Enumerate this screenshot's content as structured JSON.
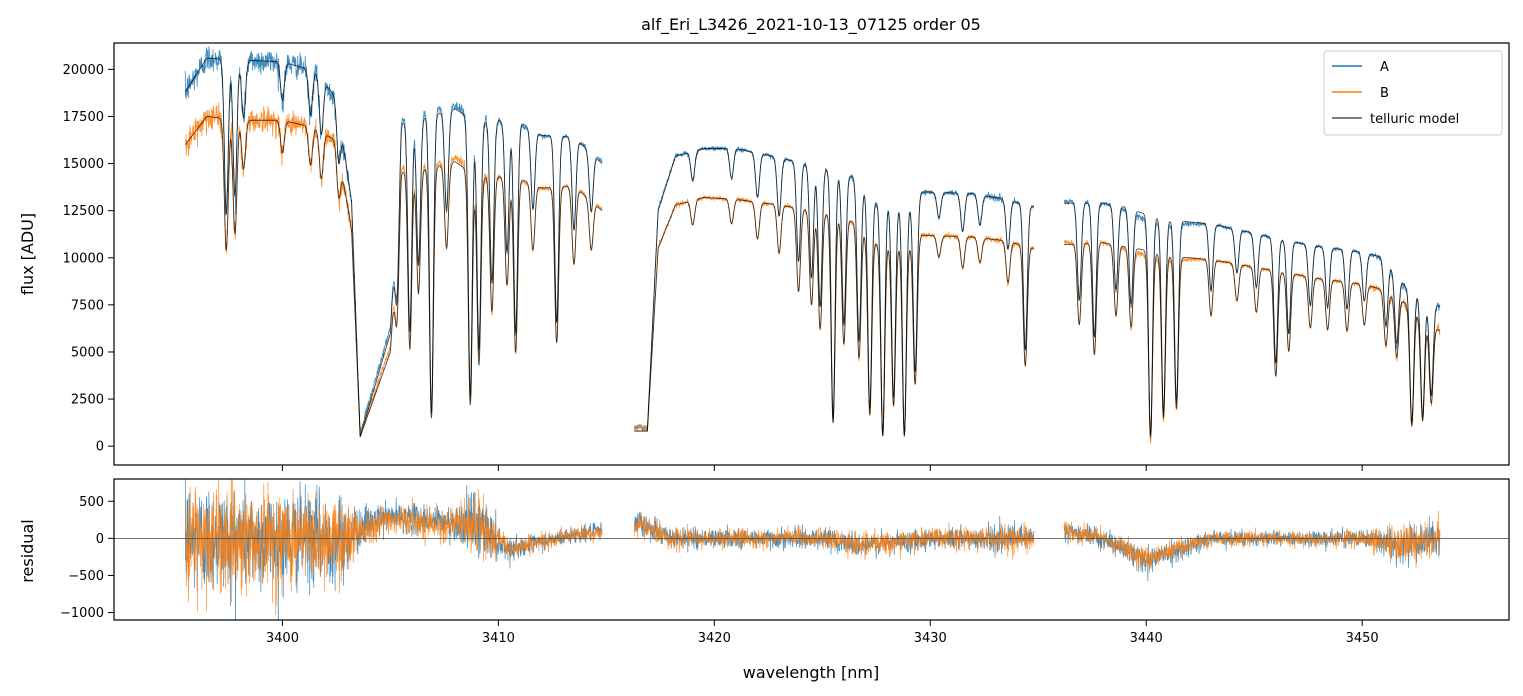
{
  "chart_data": [
    {
      "type": "line",
      "title": "alf_Eri_L3426_2021-10-13_07125  order 05",
      "xlabel": "",
      "ylabel": "flux [ADU]",
      "xlim": [
        3392.2,
        3456.8
      ],
      "ylim": [
        -1000,
        21400
      ],
      "yticks": [
        0,
        2500,
        5000,
        7500,
        10000,
        12500,
        15000,
        17500,
        20000
      ],
      "ytick_labels": [
        "0",
        "2500",
        "5000",
        "7500",
        "10000",
        "12500",
        "15000",
        "17500",
        "20000"
      ],
      "xticks": [
        3400,
        3410,
        3420,
        3430,
        3440,
        3450
      ],
      "legend_position": "upper-right",
      "segments": [
        [
          3395.5,
          3414.8
        ],
        [
          3416.3,
          3434.8
        ],
        [
          3436.2,
          3453.6
        ]
      ],
      "series": [
        {
          "name": "A",
          "color": "#1f77b4",
          "continuum": [
            [
              3395.5,
              18800
            ],
            [
              3396.5,
              20600
            ],
            [
              3398,
              20500
            ],
            [
              3400,
              20400
            ],
            [
              3401.5,
              19900
            ],
            [
              3402.5,
              18500
            ],
            [
              3403.2,
              13000
            ],
            [
              3403.6,
              500
            ],
            [
              3405,
              6000
            ],
            [
              3405.5,
              17200
            ],
            [
              3407,
              17600
            ],
            [
              3408,
              17900
            ],
            [
              3409,
              17200
            ],
            [
              3410,
              17300
            ],
            [
              3411,
              17200
            ],
            [
              3412,
              16500
            ],
            [
              3413.5,
              16400
            ],
            [
              3414.8,
              15000
            ],
            [
              3416.3,
              800
            ],
            [
              3416.9,
              800
            ],
            [
              3417.4,
              12500
            ],
            [
              3418.2,
              15400
            ],
            [
              3419.5,
              15800
            ],
            [
              3421,
              15800
            ],
            [
              3423,
              15300
            ],
            [
              3425,
              14800
            ],
            [
              3426.5,
              14300
            ],
            [
              3427.5,
              13000
            ],
            [
              3429,
              12800
            ],
            [
              3429.6,
              13500
            ],
            [
              3432,
              13400
            ],
            [
              3433.5,
              13100
            ],
            [
              3434.8,
              12700
            ],
            [
              3436.2,
              12900
            ],
            [
              3438,
              12900
            ],
            [
              3439,
              12700
            ],
            [
              3440,
              12300
            ],
            [
              3441,
              12000
            ],
            [
              3443,
              11800
            ],
            [
              3445,
              11300
            ],
            [
              3446.5,
              10900
            ],
            [
              3448,
              10600
            ],
            [
              3450,
              10300
            ],
            [
              3451,
              10000
            ],
            [
              3452,
              8500
            ],
            [
              3453.6,
              7400
            ]
          ]
        },
        {
          "name": "B",
          "color": "#ff7f0e",
          "continuum": [
            [
              3395.5,
              16000
            ],
            [
              3396.5,
              17500
            ],
            [
              3398,
              17300
            ],
            [
              3400,
              17300
            ],
            [
              3401.5,
              16900
            ],
            [
              3402.5,
              16200
            ],
            [
              3403.2,
              11500
            ],
            [
              3403.6,
              500
            ],
            [
              3405,
              5000
            ],
            [
              3405.5,
              14600
            ],
            [
              3407,
              14800
            ],
            [
              3408,
              15100
            ],
            [
              3409,
              14300
            ],
            [
              3410,
              14300
            ],
            [
              3411,
              14200
            ],
            [
              3412,
              13700
            ],
            [
              3413.5,
              13800
            ],
            [
              3414.8,
              12500
            ],
            [
              3416.3,
              800
            ],
            [
              3416.9,
              800
            ],
            [
              3417.4,
              10500
            ],
            [
              3418.2,
              12800
            ],
            [
              3419.5,
              13200
            ],
            [
              3421,
              13100
            ],
            [
              3423,
              12800
            ],
            [
              3425,
              12400
            ],
            [
              3426.5,
              11900
            ],
            [
              3427.5,
              10800
            ],
            [
              3429,
              10700
            ],
            [
              3429.6,
              11200
            ],
            [
              3432,
              11100
            ],
            [
              3433.5,
              10900
            ],
            [
              3434.8,
              10500
            ],
            [
              3436.2,
              10700
            ],
            [
              3438,
              10800
            ],
            [
              3439,
              10600
            ],
            [
              3440,
              10400
            ],
            [
              3441,
              10100
            ],
            [
              3443,
              9900
            ],
            [
              3445,
              9500
            ],
            [
              3446.5,
              9200
            ],
            [
              3448,
              8900
            ],
            [
              3450,
              8600
            ],
            [
              3451,
              8300
            ],
            [
              3452,
              7600
            ],
            [
              3453.6,
              6100
            ]
          ]
        },
        {
          "name": "telluric model",
          "color": "#555555"
        }
      ],
      "absorption_lines": [
        [
          3397.4,
          0.4
        ],
        [
          3397.8,
          0.35
        ],
        [
          3398.2,
          0.15
        ],
        [
          3400.0,
          0.1
        ],
        [
          3401.3,
          0.12
        ],
        [
          3401.8,
          0.15
        ],
        [
          3402.6,
          0.15
        ],
        [
          3405.3,
          0.4
        ],
        [
          3405.9,
          0.65
        ],
        [
          3406.3,
          0.45
        ],
        [
          3406.9,
          0.9
        ],
        [
          3407.6,
          0.3
        ],
        [
          3408.7,
          0.85
        ],
        [
          3409.1,
          0.7
        ],
        [
          3409.7,
          0.5
        ],
        [
          3410.4,
          0.4
        ],
        [
          3410.8,
          0.65
        ],
        [
          3411.6,
          0.25
        ],
        [
          3412.7,
          0.6
        ],
        [
          3413.5,
          0.3
        ],
        [
          3414.3,
          0.2
        ],
        [
          3419.0,
          0.1
        ],
        [
          3420.8,
          0.1
        ],
        [
          3422.0,
          0.15
        ],
        [
          3423.0,
          0.2
        ],
        [
          3423.9,
          0.35
        ],
        [
          3424.5,
          0.4
        ],
        [
          3424.9,
          0.5
        ],
        [
          3425.5,
          0.9
        ],
        [
          3426.0,
          0.55
        ],
        [
          3426.7,
          0.6
        ],
        [
          3427.2,
          0.85
        ],
        [
          3427.8,
          0.95
        ],
        [
          3428.3,
          0.8
        ],
        [
          3428.8,
          0.95
        ],
        [
          3429.3,
          0.7
        ],
        [
          3430.4,
          0.1
        ],
        [
          3431.5,
          0.15
        ],
        [
          3432.3,
          0.12
        ],
        [
          3433.6,
          0.2
        ],
        [
          3434.4,
          0.6
        ],
        [
          3436.9,
          0.4
        ],
        [
          3437.6,
          0.55
        ],
        [
          3438.6,
          0.35
        ],
        [
          3439.3,
          0.4
        ],
        [
          3440.2,
          0.95
        ],
        [
          3440.8,
          0.85
        ],
        [
          3441.4,
          0.8
        ],
        [
          3443.0,
          0.3
        ],
        [
          3444.2,
          0.2
        ],
        [
          3445.1,
          0.25
        ],
        [
          3446.0,
          0.6
        ],
        [
          3446.6,
          0.45
        ],
        [
          3447.6,
          0.3
        ],
        [
          3448.4,
          0.3
        ],
        [
          3449.3,
          0.3
        ],
        [
          3450.1,
          0.25
        ],
        [
          3451.1,
          0.35
        ],
        [
          3451.6,
          0.4
        ],
        [
          3452.3,
          0.85
        ],
        [
          3452.8,
          0.8
        ],
        [
          3453.2,
          0.65
        ]
      ]
    },
    {
      "type": "line",
      "title": "",
      "xlabel": "wavelength [nm]",
      "ylabel": "residual",
      "xlim": [
        3392.2,
        3456.8
      ],
      "ylim": [
        -1100,
        800
      ],
      "yticks": [
        -1000,
        -500,
        0,
        500
      ],
      "ytick_labels": [
        "−1000",
        "−500",
        "0",
        "500"
      ],
      "xticks": [
        3400,
        3410,
        3420,
        3430,
        3440,
        3450
      ],
      "xtick_labels": [
        "3400",
        "3410",
        "3420",
        "3430",
        "3440",
        "3450"
      ],
      "zero_line": 0,
      "noise_profile": [
        [
          3395.5,
          900,
          0
        ],
        [
          3397,
          800,
          0
        ],
        [
          3401,
          700,
          0
        ],
        [
          3403,
          600,
          0
        ],
        [
          3403.6,
          300,
          150
        ],
        [
          3405,
          200,
          300
        ],
        [
          3408,
          250,
          200
        ],
        [
          3409,
          500,
          200
        ],
        [
          3410.5,
          150,
          -150
        ],
        [
          3412,
          120,
          -50
        ],
        [
          3413.5,
          120,
          50
        ],
        [
          3414.8,
          120,
          100
        ],
        [
          3416.6,
          200,
          200
        ],
        [
          3418,
          140,
          0
        ],
        [
          3425,
          150,
          0
        ],
        [
          3427,
          170,
          -100
        ],
        [
          3430,
          150,
          0
        ],
        [
          3434.8,
          200,
          0
        ],
        [
          3436.2,
          150,
          100
        ],
        [
          3438,
          120,
          0
        ],
        [
          3440,
          180,
          -300
        ],
        [
          3443,
          120,
          0
        ],
        [
          3446,
          100,
          0
        ],
        [
          3450,
          120,
          0
        ],
        [
          3452,
          300,
          -100
        ],
        [
          3453.6,
          250,
          0
        ]
      ],
      "series": [
        {
          "name": "A",
          "color": "#1f77b4"
        },
        {
          "name": "B",
          "color": "#ff7f0e"
        }
      ]
    }
  ]
}
